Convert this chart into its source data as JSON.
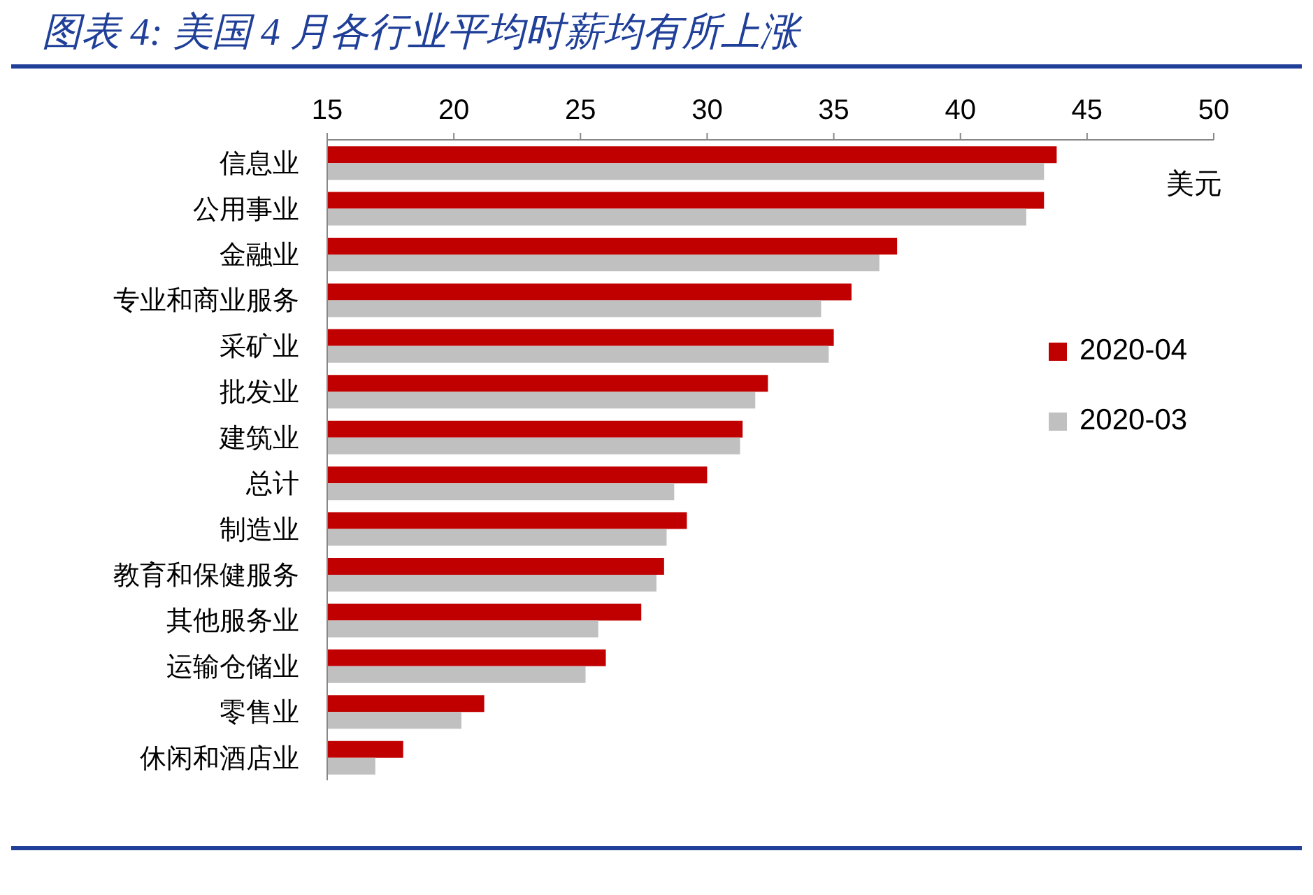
{
  "chart_data": {
    "type": "bar",
    "orientation": "horizontal",
    "title": "图表 4: 美国 4 月各行业平均时薪均有所上涨",
    "xlabel": "美元",
    "categories": [
      "信息业",
      "公用事业",
      "金融业",
      "专业和商业服务",
      "采矿业",
      "批发业",
      "建筑业",
      "总计",
      "制造业",
      "教育和保健服务",
      "其他服务业",
      "运输仓储业",
      "零售业",
      "休闲和酒店业"
    ],
    "series": [
      {
        "name": "2020-04",
        "color": "#c00000",
        "values": [
          43.8,
          43.3,
          37.5,
          35.7,
          35.0,
          32.4,
          31.4,
          30.0,
          29.2,
          28.3,
          27.4,
          26.0,
          21.2,
          18.0
        ]
      },
      {
        "name": "2020-03",
        "color": "#c0c0c0",
        "values": [
          43.3,
          42.6,
          36.8,
          34.5,
          34.8,
          31.9,
          31.3,
          28.7,
          28.4,
          28.0,
          25.7,
          25.2,
          20.3,
          16.9
        ]
      }
    ],
    "xlim": [
      15,
      50
    ],
    "xticks": [
      15,
      20,
      25,
      30,
      35,
      40,
      45,
      50
    ],
    "legend": "right"
  }
}
